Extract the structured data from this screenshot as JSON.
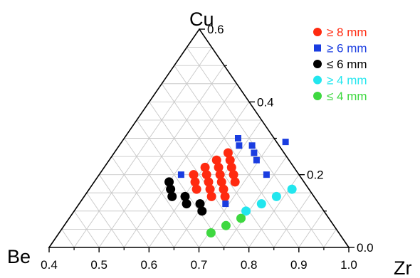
{
  "chart_data": {
    "type": "scatter",
    "subtype": "ternary",
    "vertices": {
      "top": "Cu",
      "left": "Be",
      "right": "Zr"
    },
    "bottom_axis": {
      "label": "Zr",
      "ticks": [
        "0.4",
        "0.5",
        "0.6",
        "0.7",
        "0.8",
        "0.9",
        "1.0"
      ],
      "range": [
        0.4,
        1.0
      ]
    },
    "right_axis": {
      "label": "Cu",
      "ticks": [
        "0.6",
        "0.4",
        "0.2",
        "0.0"
      ],
      "range": [
        0.0,
        0.6
      ]
    },
    "grid": true,
    "legend_position": "top-right",
    "series": [
      {
        "name": "≥ 8 mm",
        "marker": "circle",
        "color": "#ff2a10",
        "points": [
          {
            "zr": 0.628,
            "cu": 0.26
          },
          {
            "zr": 0.615,
            "cu": 0.24
          },
          {
            "zr": 0.642,
            "cu": 0.24
          },
          {
            "zr": 0.602,
            "cu": 0.22
          },
          {
            "zr": 0.629,
            "cu": 0.22
          },
          {
            "zr": 0.655,
            "cu": 0.22
          },
          {
            "zr": 0.589,
            "cu": 0.2
          },
          {
            "zr": 0.615,
            "cu": 0.2
          },
          {
            "zr": 0.642,
            "cu": 0.2
          },
          {
            "zr": 0.669,
            "cu": 0.2
          },
          {
            "zr": 0.602,
            "cu": 0.18
          },
          {
            "zr": 0.629,
            "cu": 0.18
          },
          {
            "zr": 0.655,
            "cu": 0.18
          },
          {
            "zr": 0.682,
            "cu": 0.18
          },
          {
            "zr": 0.615,
            "cu": 0.16
          },
          {
            "zr": 0.642,
            "cu": 0.16
          },
          {
            "zr": 0.669,
            "cu": 0.16
          },
          {
            "zr": 0.655,
            "cu": 0.14
          },
          {
            "zr": 0.682,
            "cu": 0.14
          }
        ]
      },
      {
        "name": "≥ 6 mm",
        "marker": "square",
        "color": "#1a3de0",
        "points": [
          {
            "zr": 0.628,
            "cu": 0.3
          },
          {
            "zr": 0.64,
            "cu": 0.28
          },
          {
            "zr": 0.666,
            "cu": 0.28
          },
          {
            "zr": 0.728,
            "cu": 0.29
          },
          {
            "zr": 0.68,
            "cu": 0.26
          },
          {
            "zr": 0.564,
            "cu": 0.2
          },
          {
            "zr": 0.695,
            "cu": 0.24
          },
          {
            "zr": 0.735,
            "cu": 0.2
          },
          {
            "zr": 0.693,
            "cu": 0.12
          }
        ]
      },
      {
        "name": "≤ 6 mm",
        "marker": "circle",
        "color": "#000000",
        "points": [
          {
            "zr": 0.55,
            "cu": 0.18
          },
          {
            "zr": 0.563,
            "cu": 0.16
          },
          {
            "zr": 0.576,
            "cu": 0.14
          },
          {
            "zr": 0.602,
            "cu": 0.14
          },
          {
            "zr": 0.615,
            "cu": 0.12
          },
          {
            "zr": 0.642,
            "cu": 0.12
          },
          {
            "zr": 0.656,
            "cu": 0.1
          }
        ]
      },
      {
        "name": "≥ 4 mm",
        "marker": "circle",
        "color": "#22e6ee",
        "points": [
          {
            "zr": 0.806,
            "cu": 0.16
          },
          {
            "zr": 0.785,
            "cu": 0.14
          },
          {
            "zr": 0.765,
            "cu": 0.12
          },
          {
            "zr": 0.744,
            "cu": 0.1
          }
        ]
      },
      {
        "name": "≤ 4 mm",
        "marker": "circle",
        "color": "#3ed840",
        "points": [
          {
            "zr": 0.744,
            "cu": 0.08
          },
          {
            "zr": 0.724,
            "cu": 0.06
          },
          {
            "zr": 0.704,
            "cu": 0.04
          }
        ]
      }
    ]
  }
}
